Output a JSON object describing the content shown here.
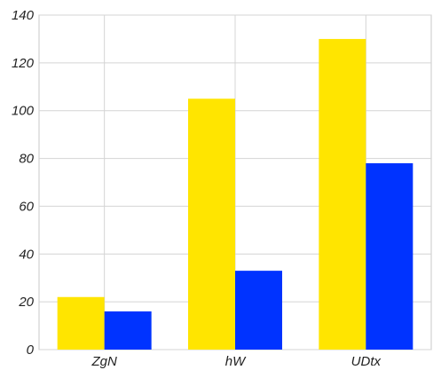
{
  "chart_data": {
    "type": "bar",
    "categories": [
      "ZgN",
      "hW",
      "UDtx"
    ],
    "series": [
      {
        "color": "#FFE500",
        "values": [
          22,
          105,
          130
        ]
      },
      {
        "color": "#0033FF",
        "values": [
          16,
          33,
          78
        ]
      }
    ],
    "ylim": [
      0,
      140
    ],
    "yticks": [
      0,
      20,
      40,
      60,
      80,
      100,
      120,
      140
    ],
    "grid": true,
    "title": "",
    "xlabel": "",
    "ylabel": ""
  }
}
